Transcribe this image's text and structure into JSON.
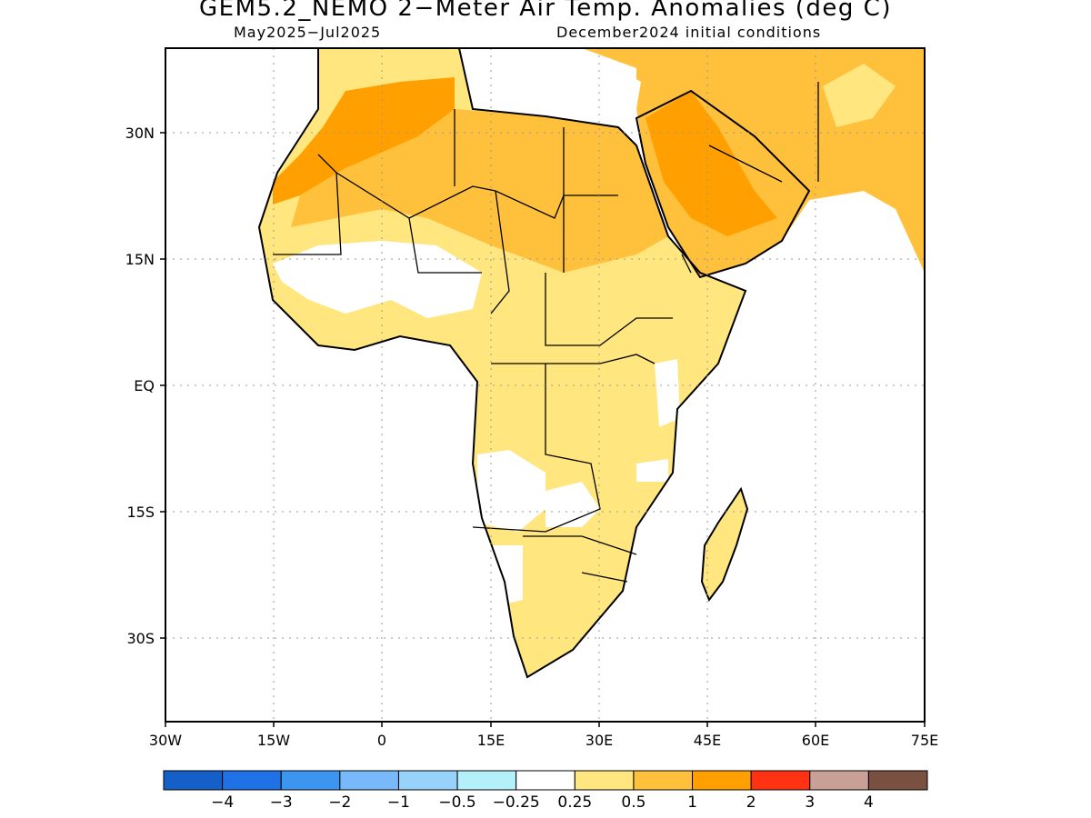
{
  "title": "GEM5.2_NEMO 2−Meter Air Temp. Anomalies (deg C)",
  "subtitle_left": "May2025−Jul2025",
  "subtitle_right": "December2024 initial conditions",
  "map": {
    "region": "Africa",
    "lon_range": [
      -30,
      75
    ],
    "lat_range": [
      -38,
      39
    ],
    "lat_ticks": [
      "30N",
      "15N",
      "EQ",
      "15S",
      "30S"
    ],
    "lon_ticks": [
      "30W",
      "15W",
      "0",
      "15E",
      "30E",
      "45E",
      "60E",
      "75E"
    ],
    "gridlines": "dotted"
  },
  "colorbar": {
    "colors": [
      "#1560c8",
      "#2070e6",
      "#3c96f0",
      "#78b9f9",
      "#96d2fa",
      "#b4f0fa",
      "#ffffff",
      "#ffe67e",
      "#ffc03c",
      "#ffa000",
      "#ff3214",
      "#c8a096",
      "#7a5040"
    ],
    "labels": [
      "−4",
      "−3",
      "−2",
      "−1",
      "−0.5",
      "−0.25",
      "0.25",
      "0.5",
      "1",
      "2",
      "3",
      "4"
    ]
  },
  "anomaly_regions": [
    {
      "name": "sahara-north",
      "level": "1 to 2"
    },
    {
      "name": "arabia",
      "level": "1 to 2"
    },
    {
      "name": "sahel-east-africa",
      "level": "0.25 to 0.5"
    },
    {
      "name": "southern-africa",
      "level": "0.25 to 0.5"
    }
  ]
}
